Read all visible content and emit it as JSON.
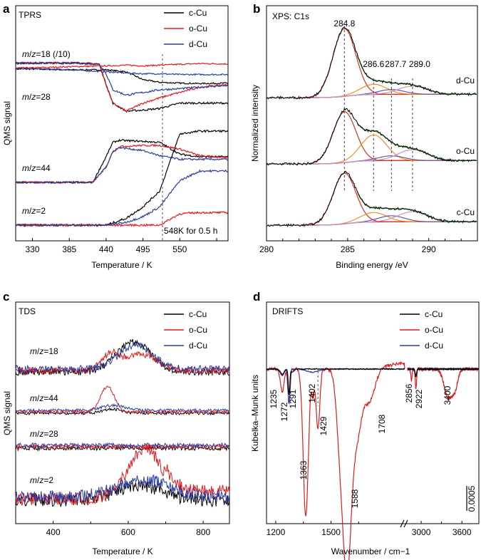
{
  "chart_data": [
    {
      "panel": "a",
      "type": "line",
      "title": "TPRS",
      "xlabel": "Temperature / K",
      "ylabel": "QMS signal",
      "xlim": [
        305,
        622
      ],
      "x_ticks": [
        "330",
        "385",
        "440",
        "495",
        "550",
        "550"
      ],
      "legend": [
        {
          "name": "c-Cu",
          "color": "#000000"
        },
        {
          "name": "o-Cu",
          "color": "#e31a1c"
        },
        {
          "name": "d-Cu",
          "color": "#2b3da3"
        }
      ],
      "legend_position": "top-right",
      "traces": [
        {
          "label": "m/z=18 (/10)",
          "x": [
            305,
            330,
            385,
            440,
            470,
            495,
            520,
            550,
            580,
            622
          ],
          "series": {
            "c-Cu": [
              0.02,
              0.02,
              0.0,
              0.0,
              -0.05,
              -0.25,
              -0.32,
              -0.34,
              -0.35,
              -0.34
            ],
            "o-Cu": [
              0.05,
              0.05,
              0.08,
              0.1,
              0.12,
              0.1,
              0.12,
              0.14,
              0.16,
              0.15
            ],
            "d-Cu": [
              0.03,
              0.03,
              0.0,
              -0.05,
              -0.08,
              -0.1,
              -0.1,
              -0.12,
              -0.12,
              -0.12
            ]
          }
        },
        {
          "label": "m/z=28",
          "x": [
            305,
            400,
            430,
            440,
            450,
            470,
            495,
            520,
            550,
            580,
            622
          ],
          "series": {
            "c-Cu": [
              0.9,
              0.9,
              0.88,
              0.5,
              0.15,
              0.0,
              0.02,
              0.05,
              0.15,
              0.15,
              0.15
            ],
            "o-Cu": [
              0.9,
              0.9,
              0.88,
              0.5,
              0.15,
              0.0,
              0.15,
              0.25,
              0.35,
              0.45,
              0.5
            ],
            "d-Cu": [
              0.9,
              0.9,
              0.88,
              0.7,
              0.4,
              0.3,
              0.35,
              0.4,
              0.42,
              0.45,
              0.48
            ]
          }
        },
        {
          "label": "m/z=44",
          "x": [
            305,
            420,
            440,
            450,
            460,
            495,
            520,
            550,
            580,
            622
          ],
          "series": {
            "c-Cu": [
              0.0,
              0.0,
              0.5,
              0.78,
              0.82,
              0.8,
              0.78,
              0.55,
              0.5,
              0.5
            ],
            "o-Cu": [
              0.0,
              0.0,
              0.3,
              0.6,
              0.7,
              0.72,
              0.72,
              0.65,
              0.52,
              0.48
            ],
            "d-Cu": [
              0.0,
              0.0,
              0.3,
              0.6,
              0.68,
              0.62,
              0.52,
              0.45,
              0.45,
              0.45
            ]
          }
        },
        {
          "label": "m/z=2",
          "x": [
            305,
            440,
            470,
            495,
            520,
            550,
            580,
            622
          ],
          "series": {
            "c-Cu": [
              0.0,
              0.0,
              0.12,
              0.32,
              0.6,
              1.6,
              1.65,
              1.65
            ],
            "o-Cu": [
              0.0,
              0.0,
              0.0,
              0.0,
              0.0,
              0.2,
              0.22,
              0.22
            ],
            "d-Cu": [
              0.0,
              0.0,
              0.05,
              0.15,
              0.32,
              0.78,
              0.95,
              0.95
            ]
          }
        }
      ],
      "annotations": [
        "548K for 0.5 h"
      ],
      "vline_x": 548
    },
    {
      "panel": "b",
      "type": "line",
      "title": "XPS: C1s",
      "xlabel": "Binding energy /eV",
      "ylabel": "Normalized intensity",
      "xlim": [
        280,
        293
      ],
      "x_ticks": [
        "280",
        "285",
        "290"
      ],
      "peaks": [
        {
          "label": "284.8",
          "x": 284.8
        },
        {
          "label": "286.6",
          "x": 286.6
        },
        {
          "label": "287.7",
          "x": 287.7
        },
        {
          "label": "289.0",
          "x": 289.0
        }
      ],
      "samples": [
        {
          "name": "d-Cu",
          "amplitudes": [
            1.0,
            0.15,
            0.07,
            0.12
          ]
        },
        {
          "name": "o-Cu",
          "amplitudes": [
            0.75,
            0.38,
            0.07,
            0.16
          ]
        },
        {
          "name": "c-Cu",
          "amplitudes": [
            0.75,
            0.14,
            0.09,
            0.15
          ]
        }
      ]
    },
    {
      "panel": "c",
      "type": "line",
      "title": "TDS",
      "xlabel": "Temperature / K",
      "ylabel": "QMS signal",
      "xlim": [
        300,
        870
      ],
      "x_ticks": [
        "400",
        "600",
        "800"
      ],
      "legend": [
        {
          "name": "c-Cu",
          "color": "#000000"
        },
        {
          "name": "o-Cu",
          "color": "#e31a1c"
        },
        {
          "name": "d-Cu",
          "color": "#2b3da3"
        }
      ],
      "legend_position": "top-right",
      "traces": [
        {
          "label": "m/z=18",
          "peaks": {
            "c-Cu": [
              [
                615,
                1.0,
                45
              ]
            ],
            "o-Cu": [
              [
                555,
                0.55,
                25
              ],
              [
                640,
                0.55,
                40
              ]
            ],
            "d-Cu": [
              [
                620,
                0.8,
                45
              ]
            ]
          }
        },
        {
          "label": "m/z=44",
          "peaks": {
            "c-Cu": [
              [
                555,
                0.15,
                25
              ]
            ],
            "o-Cu": [
              [
                545,
                0.9,
                18
              ]
            ],
            "d-Cu": [
              [
                560,
                0.18,
                30
              ]
            ]
          }
        },
        {
          "label": "m/z=28",
          "peaks": {
            "c-Cu": [],
            "o-Cu": [],
            "d-Cu": []
          }
        },
        {
          "label": "m/z=2",
          "peaks": {
            "c-Cu": [
              [
                630,
                0.3,
                60
              ]
            ],
            "o-Cu": [
              [
                645,
                1.0,
                45
              ]
            ],
            "d-Cu": [
              [
                640,
                0.35,
                70
              ]
            ]
          }
        }
      ]
    },
    {
      "panel": "d",
      "type": "line",
      "title": "DRIFTS",
      "xlabel": "Wavenumber / cm−1",
      "ylabel": "Kubelka–Munk units",
      "x_ticks": [
        "1200",
        "1500",
        "3000",
        "3600"
      ],
      "scale_bar": "0.0005",
      "legend": [
        {
          "name": "c-Cu",
          "color": "#000000"
        },
        {
          "name": "o-Cu",
          "color": "#e31a1c"
        },
        {
          "name": "d-Cu",
          "color": "#2b3da3"
        }
      ],
      "legend_position": "top-right",
      "bands": [
        "1235",
        "1272",
        "1291",
        "1363",
        "1402",
        "1429",
        "1588",
        "1708",
        "2856",
        "2922",
        "3400"
      ],
      "o_Cu_bands": [
        [
          1235,
          -0.35
        ],
        [
          1363,
          -2.3
        ],
        [
          1429,
          -0.9
        ],
        [
          1588,
          -2.9
        ],
        [
          1708,
          -0.4
        ],
        [
          2922,
          -0.25
        ],
        [
          3400,
          -0.4
        ]
      ]
    }
  ],
  "panel_labels": [
    "a",
    "b",
    "c",
    "d"
  ]
}
